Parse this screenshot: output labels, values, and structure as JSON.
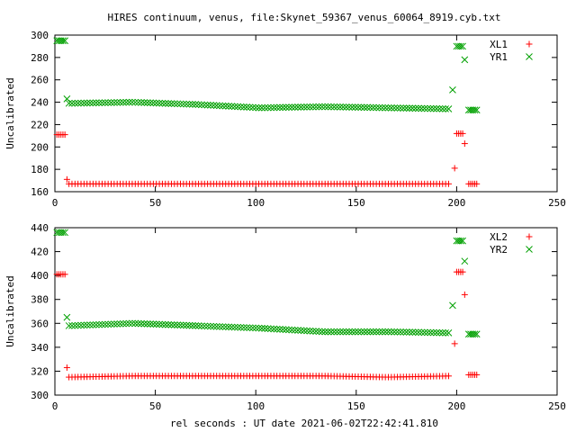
{
  "title": "HIRES continuum, venus, file:Skynet_59367_venus_60064_8919.cyb.txt",
  "xlabel": "rel seconds : UT date 2021-06-02T22:42:41.810",
  "chart_data": [
    {
      "type": "scatter",
      "ylabel": "Uncalibrated",
      "xlim": [
        0,
        250
      ],
      "ylim": [
        160,
        300
      ],
      "xticks": [
        0,
        50,
        100,
        150,
        200,
        250
      ],
      "yticks": [
        160,
        180,
        200,
        220,
        240,
        260,
        280,
        300
      ],
      "legend_position": "top-right",
      "grid": false,
      "series": [
        {
          "name": "XL1",
          "color": "#ff0000",
          "marker": "plus",
          "segments": [
            {
              "x_start": 1,
              "x_end": 5,
              "step": 1,
              "y": 211
            },
            {
              "x_start": 6,
              "x_end": 6,
              "step": 1,
              "y": 171
            },
            {
              "x_start": 7,
              "x_end": 197,
              "step": 1.5,
              "y": [
                167,
                167,
                167,
                167,
                167
              ]
            },
            {
              "x_start": 199,
              "x_end": 199,
              "step": 1,
              "y": 181
            },
            {
              "x_start": 200,
              "x_end": 203,
              "step": 1,
              "y": 212
            },
            {
              "x_start": 204,
              "x_end": 204,
              "step": 1,
              "y": 203
            },
            {
              "x_start": 206,
              "x_end": 210,
              "step": 1,
              "y": 167
            }
          ]
        },
        {
          "name": "YR1",
          "color": "#00a000",
          "marker": "cross",
          "segments": [
            {
              "x_start": 1,
              "x_end": 5,
              "step": 1,
              "y": 295
            },
            {
              "x_start": 6,
              "x_end": 6,
              "step": 1,
              "y": 243
            },
            {
              "x_start": 7,
              "x_end": 197,
              "step": 1.5,
              "y": [
                239,
                240,
                238,
                235,
                236,
                235,
                234
              ]
            },
            {
              "x_start": 198,
              "x_end": 198,
              "step": 1,
              "y": 251
            },
            {
              "x_start": 200,
              "x_end": 203,
              "step": 1,
              "y": 290
            },
            {
              "x_start": 204,
              "x_end": 204,
              "step": 1,
              "y": 278
            },
            {
              "x_start": 206,
              "x_end": 210,
              "step": 1,
              "y": 233
            }
          ]
        }
      ]
    },
    {
      "type": "scatter",
      "ylabel": "Uncalibrated",
      "xlim": [
        0,
        250
      ],
      "ylim": [
        300,
        440
      ],
      "xticks": [
        0,
        50,
        100,
        150,
        200,
        250
      ],
      "yticks": [
        300,
        320,
        340,
        360,
        380,
        400,
        420,
        440
      ],
      "legend_position": "top-right",
      "grid": false,
      "series": [
        {
          "name": "XL2",
          "color": "#ff0000",
          "marker": "plus",
          "segments": [
            {
              "x_start": 1,
              "x_end": 5,
              "step": 1,
              "y": 401
            },
            {
              "x_start": 6,
              "x_end": 6,
              "step": 1,
              "y": 323
            },
            {
              "x_start": 7,
              "x_end": 197,
              "step": 1.5,
              "y": [
                315,
                316,
                316,
                316,
                316,
                315,
                316
              ]
            },
            {
              "x_start": 199,
              "x_end": 199,
              "step": 1,
              "y": 343
            },
            {
              "x_start": 200,
              "x_end": 203,
              "step": 1,
              "y": 403
            },
            {
              "x_start": 204,
              "x_end": 204,
              "step": 1,
              "y": 384
            },
            {
              "x_start": 206,
              "x_end": 210,
              "step": 1,
              "y": 317
            }
          ]
        },
        {
          "name": "YR2",
          "color": "#00a000",
          "marker": "cross",
          "segments": [
            {
              "x_start": 1,
              "x_end": 5,
              "step": 1,
              "y": 436
            },
            {
              "x_start": 6,
              "x_end": 6,
              "step": 1,
              "y": 365
            },
            {
              "x_start": 7,
              "x_end": 197,
              "step": 1.5,
              "y": [
                358,
                360,
                358,
                356,
                353,
                353,
                352
              ]
            },
            {
              "x_start": 198,
              "x_end": 198,
              "step": 1,
              "y": 375
            },
            {
              "x_start": 200,
              "x_end": 203,
              "step": 1,
              "y": 429
            },
            {
              "x_start": 204,
              "x_end": 204,
              "step": 1,
              "y": 412
            },
            {
              "x_start": 206,
              "x_end": 210,
              "step": 1,
              "y": 351
            }
          ]
        }
      ]
    }
  ]
}
